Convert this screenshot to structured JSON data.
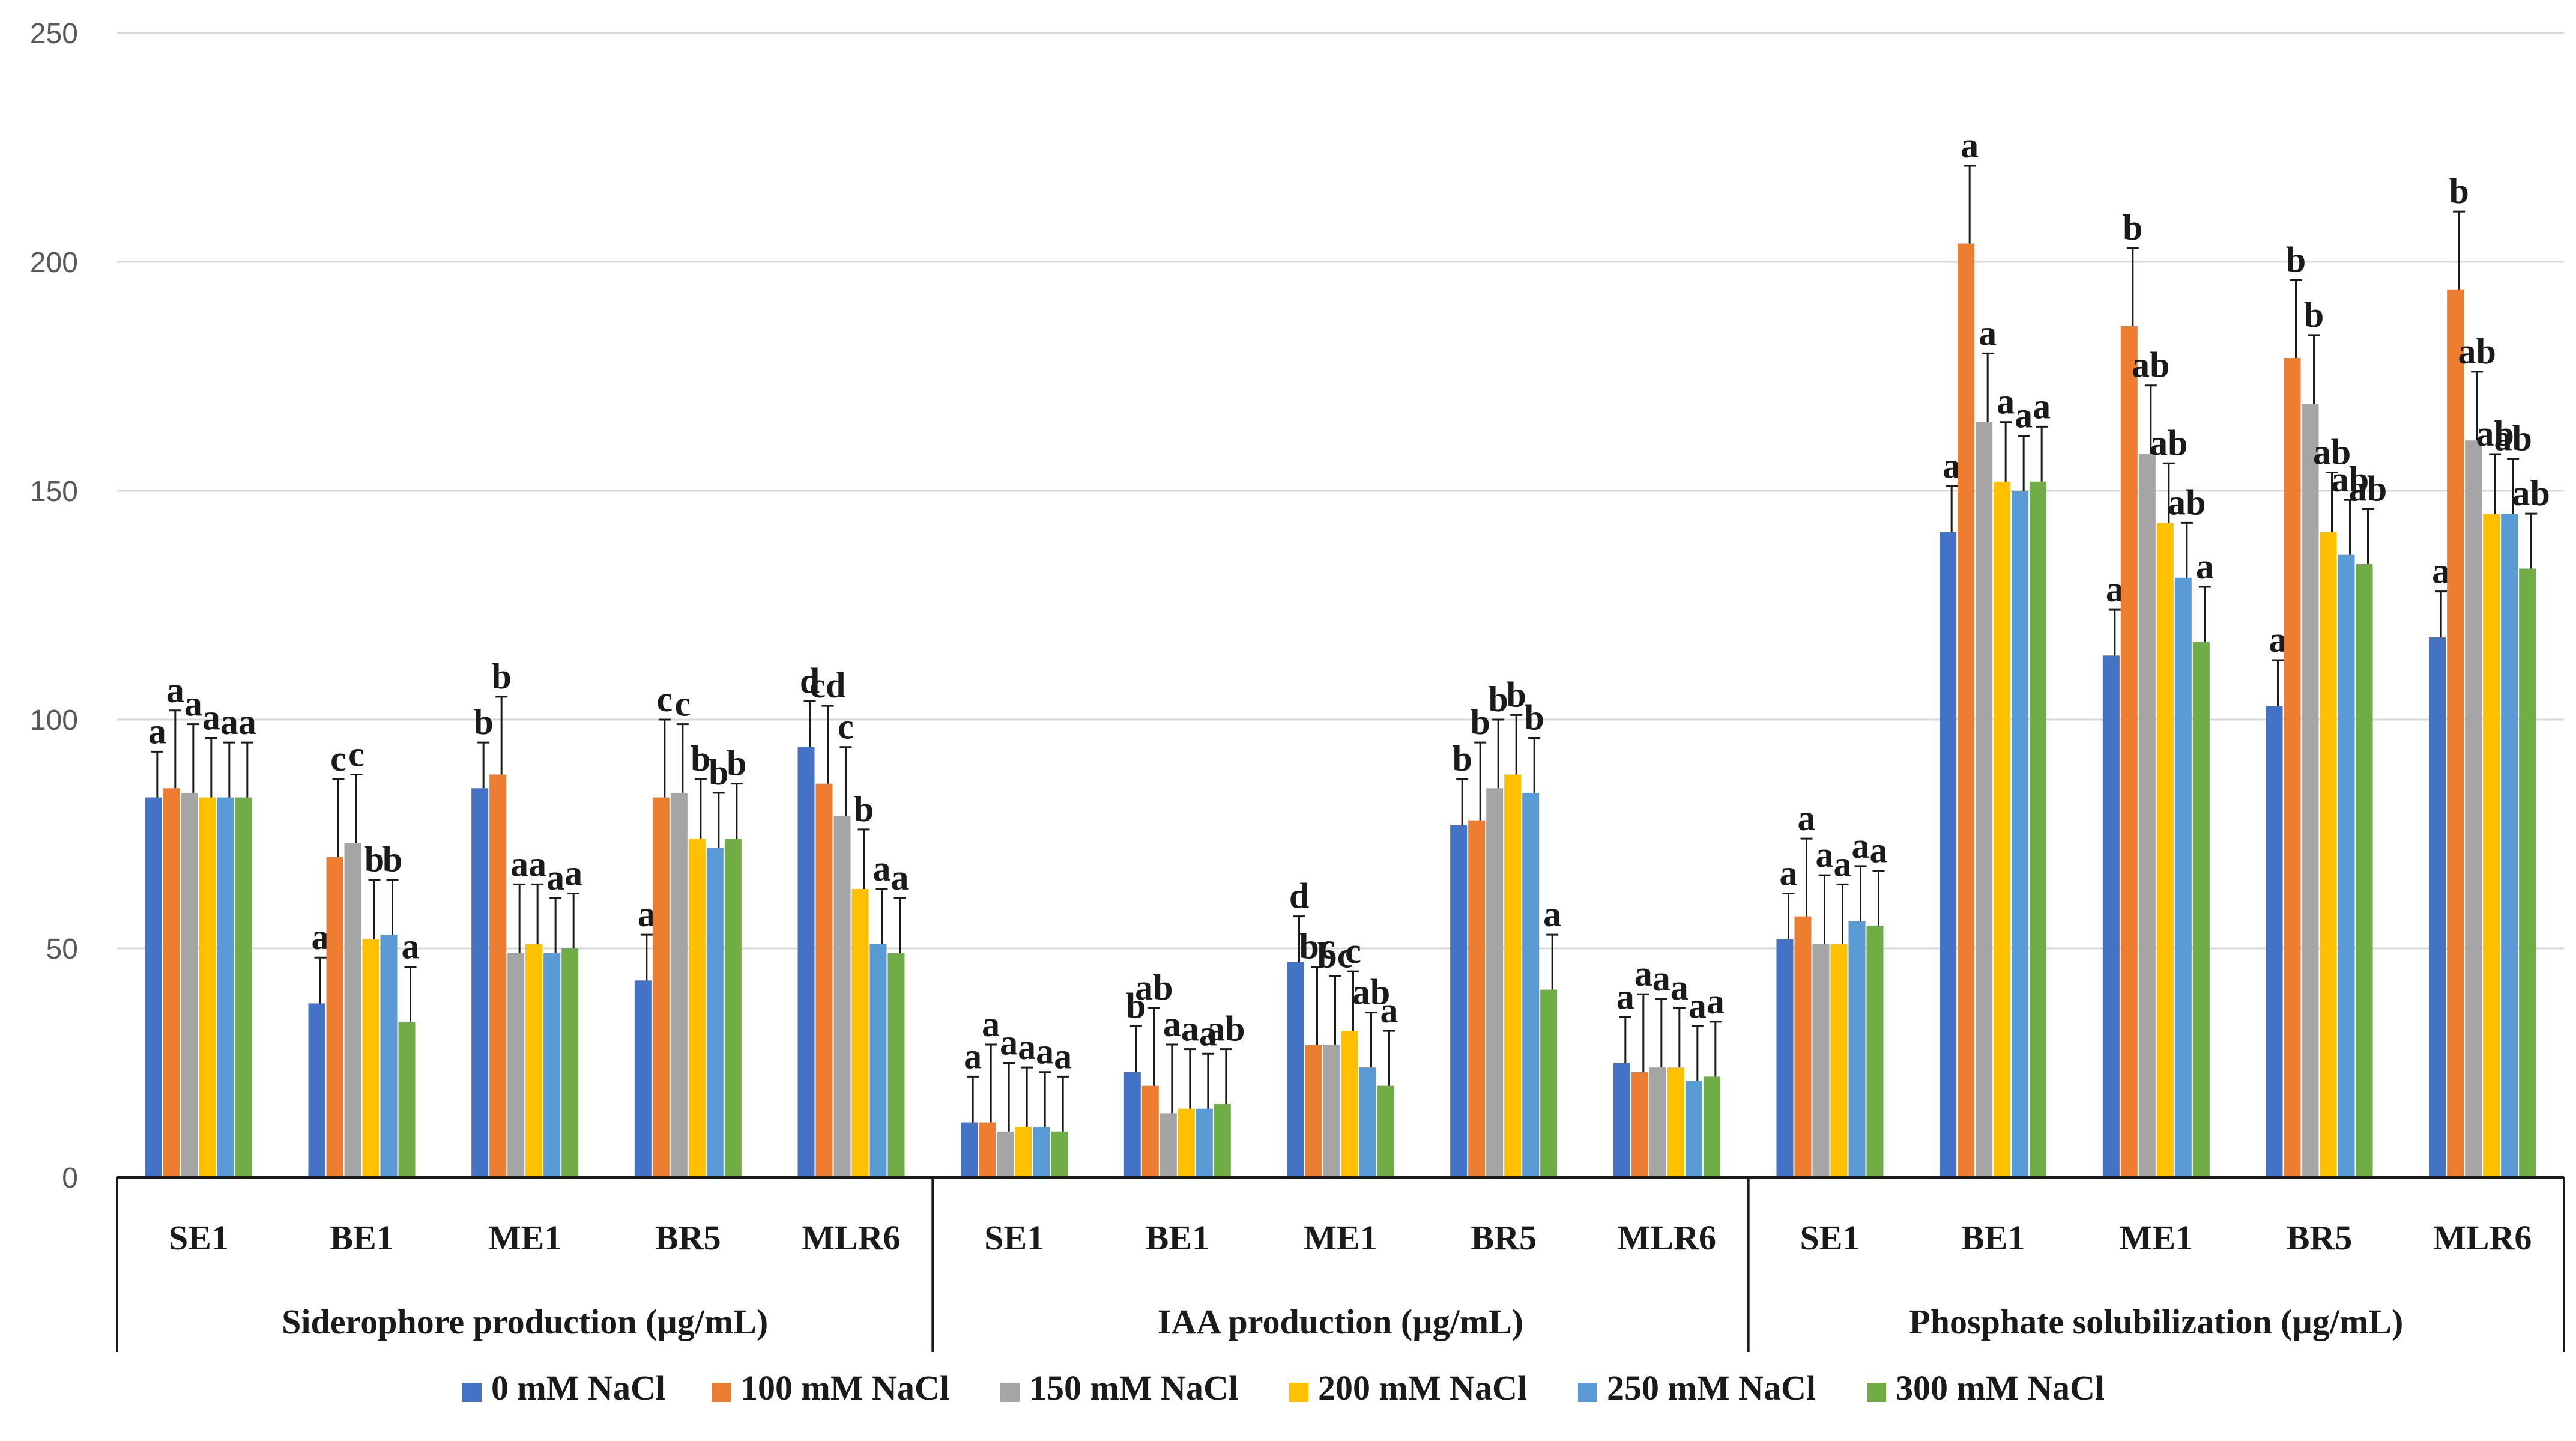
{
  "chart_data": {
    "type": "bar",
    "title": "",
    "xlabel": "",
    "ylabel": "",
    "ylim": [
      0,
      250
    ],
    "yticks": [
      0,
      50,
      100,
      150,
      200,
      250
    ],
    "grid": true,
    "legend_position": "bottom",
    "groups": [
      {
        "label": "Siderophore production (µg/mL)",
        "categories": [
          "SE1",
          "BE1",
          "ME1",
          "BR5",
          "MLR6"
        ]
      },
      {
        "label": "IAA production (µg/mL)",
        "categories": [
          "SE1",
          "BE1",
          "ME1",
          "BR5",
          "MLR6"
        ]
      },
      {
        "label": "Phosphate solubilization (µg/mL)",
        "categories": [
          "SE1",
          "BE1",
          "ME1",
          "BR5",
          "MLR6"
        ]
      }
    ],
    "series": [
      {
        "name": "0 mM NaCl",
        "color": "#4472C4",
        "values": [
          83,
          38,
          85,
          43,
          94,
          12,
          23,
          47,
          77,
          25,
          52,
          141,
          114,
          103,
          118
        ],
        "errors": [
          10,
          10,
          10,
          10,
          10,
          10,
          10,
          10,
          10,
          10,
          10,
          10,
          10,
          10,
          10
        ]
      },
      {
        "name": "100 mM NaCl",
        "color": "#ED7D31",
        "values": [
          85,
          70,
          88,
          83,
          86,
          12,
          20,
          29,
          78,
          23,
          57,
          204,
          186,
          179,
          194
        ],
        "errors": [
          17,
          17,
          17,
          17,
          17,
          17,
          17,
          17,
          17,
          17,
          17,
          17,
          17,
          17,
          17
        ]
      },
      {
        "name": "150 mM NaCl",
        "color": "#A5A5A5",
        "values": [
          84,
          73,
          49,
          84,
          79,
          10,
          14,
          29,
          85,
          24,
          51,
          165,
          158,
          169,
          161
        ],
        "errors": [
          15,
          15,
          15,
          15,
          15,
          15,
          15,
          15,
          15,
          15,
          15,
          15,
          15,
          15,
          15
        ]
      },
      {
        "name": "200 mM NaCl",
        "color": "#FFC000",
        "values": [
          83,
          52,
          51,
          74,
          63,
          11,
          15,
          32,
          88,
          24,
          51,
          152,
          143,
          141,
          145
        ],
        "errors": [
          13,
          13,
          13,
          13,
          13,
          13,
          13,
          13,
          13,
          13,
          13,
          13,
          13,
          13,
          13
        ]
      },
      {
        "name": "250 mM NaCl",
        "color": "#5B9BD5",
        "values": [
          83,
          53,
          49,
          72,
          51,
          11,
          15,
          24,
          84,
          21,
          56,
          150,
          131,
          136,
          145
        ],
        "errors": [
          12,
          12,
          12,
          12,
          12,
          12,
          12,
          12,
          12,
          12,
          12,
          12,
          12,
          12,
          12
        ]
      },
      {
        "name": "300 mM NaCl",
        "color": "#70AD47",
        "values": [
          83,
          34,
          50,
          74,
          49,
          10,
          16,
          20,
          41,
          22,
          55,
          152,
          117,
          134,
          133
        ],
        "errors": [
          12,
          12,
          12,
          12,
          12,
          12,
          12,
          12,
          12,
          12,
          12,
          12,
          12,
          12,
          12
        ]
      }
    ],
    "significance_letters": [
      [
        "a",
        "a",
        "a",
        "a",
        "a",
        "a"
      ],
      [
        "a",
        "c",
        "c",
        "b",
        "b",
        "a"
      ],
      [
        "b",
        "b",
        "a",
        "a",
        "a",
        "a"
      ],
      [
        "a",
        "c",
        "c",
        "b",
        "b",
        "b"
      ],
      [
        "d",
        "cd",
        "c",
        "b",
        "a",
        "a"
      ],
      [
        "a",
        "a",
        "a",
        "a",
        "a",
        "a"
      ],
      [
        "b",
        "ab",
        "a",
        "a",
        "a",
        "ab"
      ],
      [
        "d",
        "bc",
        "bc",
        "c",
        "ab",
        "a"
      ],
      [
        "b",
        "b",
        "b",
        "b",
        "b",
        "a"
      ],
      [
        "a",
        "a",
        "a",
        "a",
        "a",
        "a"
      ],
      [
        "a",
        "a",
        "a",
        "a",
        "a",
        "a"
      ],
      [
        "a",
        "a",
        "a",
        "a",
        "a",
        "a"
      ],
      [
        "a",
        "b",
        "ab",
        "ab",
        "ab",
        "a"
      ],
      [
        "a",
        "b",
        "b",
        "ab",
        "ab",
        "ab"
      ],
      [
        "a",
        "b",
        "ab",
        "ab",
        "ab",
        "ab"
      ]
    ]
  }
}
